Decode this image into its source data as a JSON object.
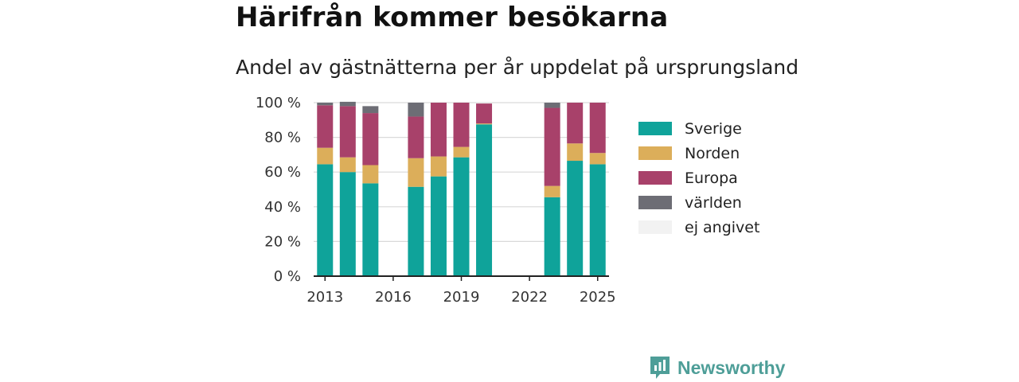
{
  "title": "Härifrån kommer besökarna",
  "subtitle": "Andel av gästnätterna per år uppdelat på ursprungsland",
  "brand": "Newsworthy",
  "chart_data": {
    "type": "bar",
    "stacked": true,
    "x": [
      2013,
      2014,
      2015,
      2017,
      2018,
      2019,
      2020,
      2023,
      2024,
      2025
    ],
    "x_ticks": [
      "2013",
      "2016",
      "2019",
      "2022",
      "2025"
    ],
    "x_range": [
      2012.5,
      2025.5
    ],
    "y_ticks": [
      "0 %",
      "20 %",
      "40 %",
      "60 %",
      "80 %",
      "100 %"
    ],
    "ylim": [
      0,
      100
    ],
    "grid": true,
    "legend_position": "right",
    "series": [
      {
        "name": "Sverige",
        "color": "#0fa39a",
        "values": [
          64.5,
          60,
          53.5,
          51.5,
          57.5,
          68.5,
          87.5,
          45.5,
          66.5,
          64.5
        ]
      },
      {
        "name": "Norden",
        "color": "#dcae5a",
        "values": [
          9.5,
          8.5,
          10.5,
          16.5,
          11.5,
          6,
          0.5,
          6.5,
          10,
          6.5
        ]
      },
      {
        "name": "Europa",
        "color": "#a8416a",
        "values": [
          24.5,
          29.5,
          30,
          24,
          31,
          25.5,
          11.5,
          45,
          23.5,
          29
        ]
      },
      {
        "name": "världen",
        "color": "#6d6d75",
        "values": [
          1.5,
          2.5,
          4,
          8,
          0,
          0,
          0,
          3,
          0,
          0
        ]
      },
      {
        "name": "ej angivet",
        "color": "#f2f2f2",
        "values": [
          0,
          0,
          0,
          0,
          0,
          0,
          0,
          0,
          0,
          0
        ]
      }
    ]
  }
}
